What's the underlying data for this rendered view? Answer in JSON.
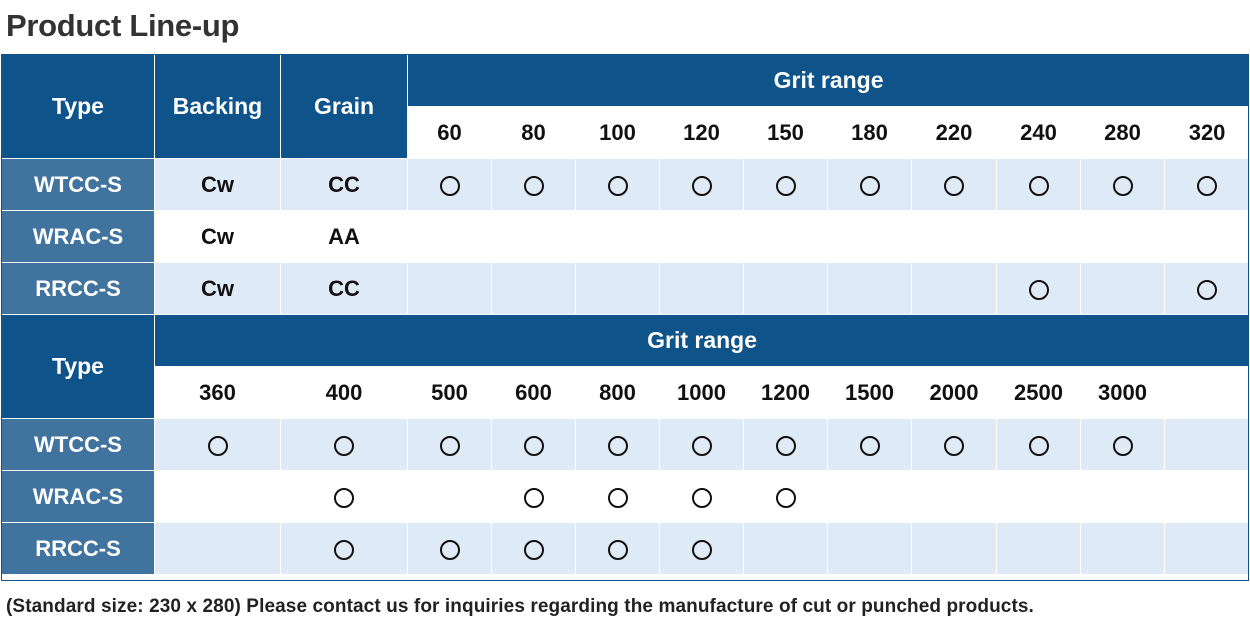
{
  "title": "Product Line-up",
  "header": {
    "type": "Type",
    "backing": "Backing",
    "grain": "Grain",
    "grit_range": "Grit range"
  },
  "grits_1": [
    "60",
    "80",
    "100",
    "120",
    "150",
    "180",
    "220",
    "240",
    "280",
    "320"
  ],
  "grits_2": [
    "360",
    "400",
    "500",
    "600",
    "800",
    "1000",
    "1200",
    "1500",
    "2000",
    "2500",
    "3000"
  ],
  "rows_1": [
    {
      "type": "WTCC-S",
      "backing": "Cw",
      "grain": "CC",
      "avail": [
        1,
        1,
        1,
        1,
        1,
        1,
        1,
        1,
        1,
        1
      ]
    },
    {
      "type": "WRAC-S",
      "backing": "Cw",
      "grain": "AA",
      "avail": [
        0,
        0,
        0,
        0,
        0,
        0,
        0,
        0,
        0,
        0
      ]
    },
    {
      "type": "RRCC-S",
      "backing": "Cw",
      "grain": "CC",
      "avail": [
        0,
        0,
        0,
        0,
        0,
        0,
        0,
        1,
        0,
        1
      ]
    }
  ],
  "rows_2": [
    {
      "type": "WTCC-S",
      "avail": [
        1,
        1,
        1,
        1,
        1,
        1,
        1,
        1,
        1,
        1,
        1
      ]
    },
    {
      "type": "WRAC-S",
      "avail": [
        0,
        1,
        0,
        1,
        1,
        1,
        1,
        0,
        0,
        0,
        0
      ]
    },
    {
      "type": "RRCC-S",
      "avail": [
        0,
        1,
        1,
        1,
        1,
        1,
        0,
        0,
        0,
        0,
        0
      ]
    }
  ],
  "note": "(Standard size: 230 x 280) Please contact us for inquiries regarding the manufacture of cut or punched products."
}
